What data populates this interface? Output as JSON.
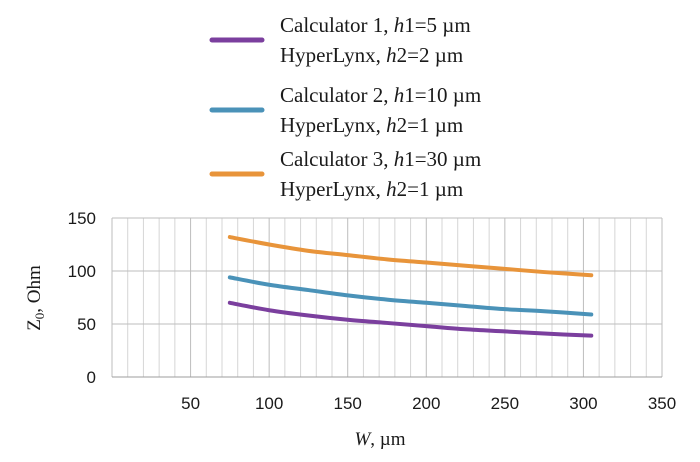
{
  "chart_data": {
    "type": "line",
    "xlabel": "W, µm",
    "ylabel": "Z0, Ohm",
    "xlim": [
      0,
      350
    ],
    "ylim": [
      0,
      150
    ],
    "x_ticks": [
      50,
      100,
      150,
      200,
      250,
      300,
      350
    ],
    "y_ticks": [
      0,
      50,
      100,
      150
    ],
    "grid": true,
    "legend_position": "top-center",
    "series": [
      {
        "calc": "Calculator 1",
        "h_label": "h1=5 µm",
        "tool": "HyperLynx",
        "h2_label": "h2=2 µm",
        "color": "#7B3F9E",
        "x": [
          75,
          100,
          125,
          150,
          175,
          200,
          225,
          250,
          275,
          305
        ],
        "y": [
          70,
          63,
          58,
          54,
          51,
          48,
          45,
          43,
          41,
          39
        ]
      },
      {
        "calc": "Calculator 2",
        "h_label": "h1=10 µm",
        "tool": "HyperLynx",
        "h2_label": "h2=1 µm",
        "color": "#4A92B8",
        "x": [
          75,
          100,
          125,
          150,
          175,
          200,
          225,
          250,
          275,
          305
        ],
        "y": [
          94,
          87,
          82,
          77,
          73,
          70,
          67,
          64,
          62,
          59
        ]
      },
      {
        "calc": "Calculator 3",
        "h_label": "h1=30 µm",
        "tool": "HyperLynx",
        "h2_label": "h2=1 µm",
        "color": "#E8943A",
        "x": [
          75,
          100,
          125,
          150,
          175,
          200,
          225,
          250,
          275,
          305
        ],
        "y": [
          132,
          125,
          119,
          115,
          111,
          108,
          105,
          102,
          99,
          96
        ]
      }
    ]
  }
}
